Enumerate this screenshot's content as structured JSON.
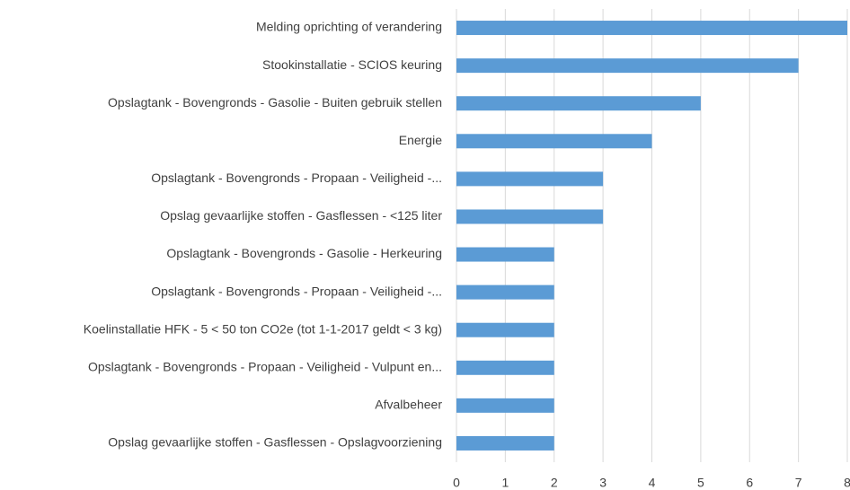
{
  "chart_data": {
    "type": "bar",
    "orientation": "horizontal",
    "categories": [
      "Melding oprichting of verandering",
      "Stookinstallatie - SCIOS keuring",
      "Opslagtank - Bovengronds - Gasolie - Buiten gebruik stellen",
      "Energie",
      "Opslagtank - Bovengronds - Propaan - Veiligheid -...",
      "Opslag gevaarlijke stoffen - Gasflessen - <125 liter",
      "Opslagtank - Bovengronds - Gasolie - Herkeuring",
      "Opslagtank - Bovengronds - Propaan - Veiligheid -...",
      "Koelinstallatie HFK - 5 < 50 ton CO2e (tot 1-1-2017 geldt < 3 kg)",
      "Opslagtank - Bovengronds - Propaan - Veiligheid - Vulpunt en...",
      "Afvalbeheer",
      "Opslag gevaarlijke stoffen - Gasflessen - Opslagvoorziening"
    ],
    "values": [
      8,
      7,
      5,
      4,
      3,
      3,
      2,
      2,
      2,
      2,
      2,
      2
    ],
    "color": "#5b9bd5",
    "xlim": [
      0,
      8
    ],
    "xticks": [
      0,
      1,
      2,
      3,
      4,
      5,
      6,
      7,
      8
    ],
    "grid": true
  }
}
